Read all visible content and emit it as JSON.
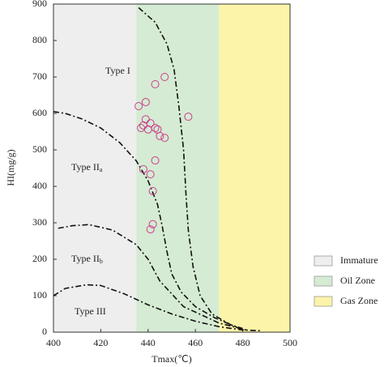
{
  "chart_data": {
    "type": "scatter",
    "xlabel": "Tmax(℃)",
    "ylabel": "HI(mg/g)",
    "xlim": [
      400,
      500
    ],
    "ylim": [
      0,
      900
    ],
    "xticks": [
      400,
      420,
      440,
      460,
      480,
      500
    ],
    "yticks": [
      0,
      100,
      200,
      300,
      400,
      500,
      600,
      700,
      800,
      900
    ],
    "zones": [
      {
        "name": "Immature",
        "color": "#eeeeee",
        "range": [
          400,
          435
        ]
      },
      {
        "name": "Oil Zone",
        "color": "#d5ebd3",
        "range": [
          435,
          470
        ]
      },
      {
        "name": "Gas Zone",
        "color": "#fcf4a8",
        "range": [
          470,
          500
        ]
      }
    ],
    "marker_color": "#cc3d8f",
    "x": [
      447,
      443,
      436,
      439,
      457,
      439,
      441,
      438,
      437,
      440,
      443,
      444,
      445,
      447,
      443,
      438,
      441,
      442,
      442,
      441
    ],
    "values": [
      700,
      680,
      620,
      631,
      591,
      584,
      573,
      567,
      560,
      556,
      560,
      556,
      538,
      533,
      471,
      447,
      433,
      387,
      296,
      282
    ],
    "curves": [
      {
        "x": [
          436,
          443,
          448,
          451,
          453,
          455,
          456,
          457,
          459,
          462,
          467,
          475,
          480
        ],
        "y": [
          890,
          850,
          790,
          720,
          620,
          500,
          380,
          280,
          180,
          100,
          50,
          20,
          10
        ]
      },
      {
        "x": [
          400,
          405,
          412,
          420,
          428,
          435,
          440,
          444,
          446,
          448,
          450,
          454,
          460,
          468,
          478
        ],
        "y": [
          605,
          600,
          585,
          560,
          520,
          470,
          415,
          350,
          290,
          220,
          160,
          110,
          70,
          40,
          12
        ]
      },
      {
        "x": [
          402,
          408,
          415,
          425,
          435,
          440,
          445,
          455,
          470,
          482
        ],
        "y": [
          285,
          292,
          295,
          280,
          240,
          200,
          140,
          70,
          25,
          5
        ]
      },
      {
        "x": [
          400,
          405,
          414,
          420,
          430,
          440,
          450,
          460,
          470,
          480,
          488
        ],
        "y": [
          100,
          120,
          130,
          128,
          105,
          75,
          50,
          30,
          15,
          6,
          4
        ]
      }
    ],
    "annotations": [
      {
        "text": "Type I"
      },
      {
        "text": "Type II",
        "sub": "a"
      },
      {
        "text": "Type II",
        "sub": "b"
      },
      {
        "text": "Type III"
      }
    ]
  }
}
